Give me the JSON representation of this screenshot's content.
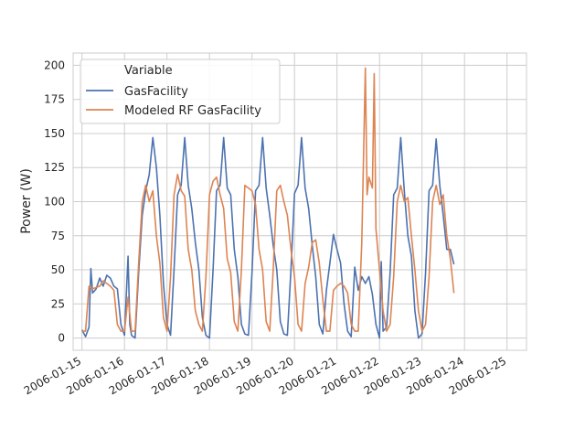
{
  "chart_data": {
    "type": "line",
    "title": "",
    "xlabel": "",
    "ylabel": "Power (W)",
    "x_type": "date",
    "xlim": [
      "2006-01-14T19:00",
      "2006-01-25T11:00"
    ],
    "ylim": [
      -9,
      209
    ],
    "yticks": [
      0,
      25,
      50,
      75,
      100,
      125,
      150,
      175,
      200
    ],
    "x_ticks": [
      "2006-01-15",
      "2006-01-16",
      "2006-01-17",
      "2006-01-18",
      "2006-01-19",
      "2006-01-20",
      "2006-01-21",
      "2006-01-22",
      "2006-01-23",
      "2006-01-24",
      "2006-01-25"
    ],
    "grid": true,
    "legend": {
      "title": "Variable",
      "position": "upper-left"
    },
    "series": [
      {
        "name": "GasFacility",
        "color": "#4c72b0",
        "points": [
          [
            "2006-01-15T00:00",
            6
          ],
          [
            "2006-01-15T02:00",
            1
          ],
          [
            "2006-01-15T04:00",
            8
          ],
          [
            "2006-01-15T05:00",
            51
          ],
          [
            "2006-01-15T06:00",
            33
          ],
          [
            "2006-01-15T08:00",
            36
          ],
          [
            "2006-01-15T10:00",
            44
          ],
          [
            "2006-01-15T12:00",
            38
          ],
          [
            "2006-01-15T14:00",
            46
          ],
          [
            "2006-01-15T16:00",
            44
          ],
          [
            "2006-01-15T18:00",
            38
          ],
          [
            "2006-01-15T20:00",
            36
          ],
          [
            "2006-01-15T22:00",
            10
          ],
          [
            "2006-01-16T00:00",
            2
          ],
          [
            "2006-01-16T02:00",
            60
          ],
          [
            "2006-01-16T03:00",
            10
          ],
          [
            "2006-01-16T04:00",
            2
          ],
          [
            "2006-01-16T06:00",
            0
          ],
          [
            "2006-01-16T08:00",
            48
          ],
          [
            "2006-01-16T10:00",
            90
          ],
          [
            "2006-01-16T12:00",
            108
          ],
          [
            "2006-01-16T14:00",
            120
          ],
          [
            "2006-01-16T16:00",
            147
          ],
          [
            "2006-01-16T18:00",
            125
          ],
          [
            "2006-01-16T20:00",
            90
          ],
          [
            "2006-01-16T22:00",
            40
          ],
          [
            "2006-01-17T00:00",
            10
          ],
          [
            "2006-01-17T02:00",
            2
          ],
          [
            "2006-01-17T04:00",
            50
          ],
          [
            "2006-01-17T06:00",
            105
          ],
          [
            "2006-01-17T08:00",
            112
          ],
          [
            "2006-01-17T10:00",
            147
          ],
          [
            "2006-01-17T12:00",
            112
          ],
          [
            "2006-01-17T14:00",
            95
          ],
          [
            "2006-01-17T16:00",
            70
          ],
          [
            "2006-01-17T18:00",
            50
          ],
          [
            "2006-01-17T20:00",
            15
          ],
          [
            "2006-01-17T22:00",
            2
          ],
          [
            "2006-01-18T00:00",
            0
          ],
          [
            "2006-01-18T02:00",
            50
          ],
          [
            "2006-01-18T04:00",
            108
          ],
          [
            "2006-01-18T06:00",
            112
          ],
          [
            "2006-01-18T08:00",
            147
          ],
          [
            "2006-01-18T10:00",
            110
          ],
          [
            "2006-01-18T12:00",
            105
          ],
          [
            "2006-01-18T14:00",
            65
          ],
          [
            "2006-01-18T16:00",
            45
          ],
          [
            "2006-01-18T18:00",
            10
          ],
          [
            "2006-01-18T20:00",
            3
          ],
          [
            "2006-01-18T22:00",
            2
          ],
          [
            "2006-01-19T00:00",
            48
          ],
          [
            "2006-01-19T02:00",
            108
          ],
          [
            "2006-01-19T04:00",
            112
          ],
          [
            "2006-01-19T06:00",
            147
          ],
          [
            "2006-01-19T08:00",
            110
          ],
          [
            "2006-01-19T10:00",
            90
          ],
          [
            "2006-01-19T12:00",
            68
          ],
          [
            "2006-01-19T14:00",
            50
          ],
          [
            "2006-01-19T16:00",
            12
          ],
          [
            "2006-01-19T18:00",
            3
          ],
          [
            "2006-01-19T20:00",
            2
          ],
          [
            "2006-01-19T22:00",
            50
          ],
          [
            "2006-01-20T00:00",
            106
          ],
          [
            "2006-01-20T02:00",
            112
          ],
          [
            "2006-01-20T04:00",
            147
          ],
          [
            "2006-01-20T06:00",
            110
          ],
          [
            "2006-01-20T08:00",
            95
          ],
          [
            "2006-01-20T10:00",
            68
          ],
          [
            "2006-01-20T12:00",
            45
          ],
          [
            "2006-01-20T14:00",
            10
          ],
          [
            "2006-01-20T16:00",
            3
          ],
          [
            "2006-01-20T18:00",
            35
          ],
          [
            "2006-01-20T20:00",
            55
          ],
          [
            "2006-01-20T22:00",
            76
          ],
          [
            "2006-01-21T00:00",
            65
          ],
          [
            "2006-01-21T02:00",
            55
          ],
          [
            "2006-01-21T04:00",
            25
          ],
          [
            "2006-01-21T06:00",
            5
          ],
          [
            "2006-01-21T08:00",
            1
          ],
          [
            "2006-01-21T10:00",
            52
          ],
          [
            "2006-01-21T12:00",
            35
          ],
          [
            "2006-01-21T14:00",
            45
          ],
          [
            "2006-01-21T16:00",
            40
          ],
          [
            "2006-01-21T18:00",
            45
          ],
          [
            "2006-01-21T20:00",
            32
          ],
          [
            "2006-01-21T22:00",
            10
          ],
          [
            "2006-01-22T00:00",
            0
          ],
          [
            "2006-01-22T01:00",
            56
          ],
          [
            "2006-01-22T02:00",
            5
          ],
          [
            "2006-01-22T04:00",
            8
          ],
          [
            "2006-01-22T06:00",
            48
          ],
          [
            "2006-01-22T08:00",
            105
          ],
          [
            "2006-01-22T10:00",
            110
          ],
          [
            "2006-01-22T12:00",
            147
          ],
          [
            "2006-01-22T14:00",
            108
          ],
          [
            "2006-01-22T16:00",
            75
          ],
          [
            "2006-01-22T18:00",
            60
          ],
          [
            "2006-01-22T20:00",
            20
          ],
          [
            "2006-01-22T22:00",
            0
          ],
          [
            "2006-01-23T00:00",
            3
          ],
          [
            "2006-01-23T02:00",
            48
          ],
          [
            "2006-01-23T04:00",
            108
          ],
          [
            "2006-01-23T06:00",
            112
          ],
          [
            "2006-01-23T08:00",
            146
          ],
          [
            "2006-01-23T10:00",
            112
          ],
          [
            "2006-01-23T12:00",
            90
          ],
          [
            "2006-01-23T14:00",
            65
          ],
          [
            "2006-01-23T16:00",
            65
          ],
          [
            "2006-01-23T18:00",
            54
          ]
        ]
      },
      {
        "name": "Modeled RF GasFacility",
        "color": "#dd8452",
        "points": [
          [
            "2006-01-15T00:00",
            5
          ],
          [
            "2006-01-15T02:00",
            5
          ],
          [
            "2006-01-15T04:00",
            38
          ],
          [
            "2006-01-15T06:00",
            36
          ],
          [
            "2006-01-15T08:00",
            37
          ],
          [
            "2006-01-15T10:00",
            38
          ],
          [
            "2006-01-15T12:00",
            42
          ],
          [
            "2006-01-15T14:00",
            40
          ],
          [
            "2006-01-15T16:00",
            38
          ],
          [
            "2006-01-15T18:00",
            35
          ],
          [
            "2006-01-15T20:00",
            10
          ],
          [
            "2006-01-15T22:00",
            5
          ],
          [
            "2006-01-16T00:00",
            5
          ],
          [
            "2006-01-16T02:00",
            30
          ],
          [
            "2006-01-16T04:00",
            5
          ],
          [
            "2006-01-16T06:00",
            5
          ],
          [
            "2006-01-16T08:00",
            55
          ],
          [
            "2006-01-16T10:00",
            100
          ],
          [
            "2006-01-16T12:00",
            112
          ],
          [
            "2006-01-16T14:00",
            100
          ],
          [
            "2006-01-16T16:00",
            108
          ],
          [
            "2006-01-16T18:00",
            75
          ],
          [
            "2006-01-16T20:00",
            55
          ],
          [
            "2006-01-16T22:00",
            15
          ],
          [
            "2006-01-17T00:00",
            5
          ],
          [
            "2006-01-17T02:00",
            45
          ],
          [
            "2006-01-17T04:00",
            105
          ],
          [
            "2006-01-17T06:00",
            120
          ],
          [
            "2006-01-17T08:00",
            108
          ],
          [
            "2006-01-17T10:00",
            104
          ],
          [
            "2006-01-17T12:00",
            65
          ],
          [
            "2006-01-17T14:00",
            50
          ],
          [
            "2006-01-17T16:00",
            20
          ],
          [
            "2006-01-17T18:00",
            10
          ],
          [
            "2006-01-17T20:00",
            5
          ],
          [
            "2006-01-17T22:00",
            45
          ],
          [
            "2006-01-18T00:00",
            105
          ],
          [
            "2006-01-18T02:00",
            115
          ],
          [
            "2006-01-18T04:00",
            118
          ],
          [
            "2006-01-18T06:00",
            105
          ],
          [
            "2006-01-18T08:00",
            95
          ],
          [
            "2006-01-18T10:00",
            58
          ],
          [
            "2006-01-18T12:00",
            48
          ],
          [
            "2006-01-18T14:00",
            12
          ],
          [
            "2006-01-18T16:00",
            5
          ],
          [
            "2006-01-18T18:00",
            50
          ],
          [
            "2006-01-18T20:00",
            112
          ],
          [
            "2006-01-18T22:00",
            110
          ],
          [
            "2006-01-19T00:00",
            108
          ],
          [
            "2006-01-19T02:00",
            98
          ],
          [
            "2006-01-19T04:00",
            65
          ],
          [
            "2006-01-19T06:00",
            50
          ],
          [
            "2006-01-19T08:00",
            12
          ],
          [
            "2006-01-19T10:00",
            5
          ],
          [
            "2006-01-19T12:00",
            50
          ],
          [
            "2006-01-19T14:00",
            108
          ],
          [
            "2006-01-19T16:00",
            112
          ],
          [
            "2006-01-19T18:00",
            100
          ],
          [
            "2006-01-19T20:00",
            90
          ],
          [
            "2006-01-19T22:00",
            65
          ],
          [
            "2006-01-20T00:00",
            45
          ],
          [
            "2006-01-20T02:00",
            10
          ],
          [
            "2006-01-20T04:00",
            5
          ],
          [
            "2006-01-20T06:00",
            40
          ],
          [
            "2006-01-20T08:00",
            52
          ],
          [
            "2006-01-20T10:00",
            70
          ],
          [
            "2006-01-20T12:00",
            72
          ],
          [
            "2006-01-20T14:00",
            55
          ],
          [
            "2006-01-20T16:00",
            28
          ],
          [
            "2006-01-20T18:00",
            5
          ],
          [
            "2006-01-20T20:00",
            5
          ],
          [
            "2006-01-20T22:00",
            35
          ],
          [
            "2006-01-21T00:00",
            38
          ],
          [
            "2006-01-21T02:00",
            40
          ],
          [
            "2006-01-21T04:00",
            38
          ],
          [
            "2006-01-21T06:00",
            33
          ],
          [
            "2006-01-21T08:00",
            10
          ],
          [
            "2006-01-21T10:00",
            5
          ],
          [
            "2006-01-21T12:00",
            5
          ],
          [
            "2006-01-21T14:00",
            70
          ],
          [
            "2006-01-21T16:00",
            198
          ],
          [
            "2006-01-21T17:00",
            105
          ],
          [
            "2006-01-21T18:00",
            118
          ],
          [
            "2006-01-21T20:00",
            110
          ],
          [
            "2006-01-21T21:00",
            194
          ],
          [
            "2006-01-21T22:00",
            80
          ],
          [
            "2006-01-22T00:00",
            50
          ],
          [
            "2006-01-22T02:00",
            20
          ],
          [
            "2006-01-22T04:00",
            5
          ],
          [
            "2006-01-22T06:00",
            10
          ],
          [
            "2006-01-22T08:00",
            45
          ],
          [
            "2006-01-22T10:00",
            100
          ],
          [
            "2006-01-22T12:00",
            112
          ],
          [
            "2006-01-22T14:00",
            100
          ],
          [
            "2006-01-22T16:00",
            103
          ],
          [
            "2006-01-22T18:00",
            75
          ],
          [
            "2006-01-22T20:00",
            50
          ],
          [
            "2006-01-22T22:00",
            20
          ],
          [
            "2006-01-23T00:00",
            5
          ],
          [
            "2006-01-23T02:00",
            10
          ],
          [
            "2006-01-23T04:00",
            45
          ],
          [
            "2006-01-23T06:00",
            100
          ],
          [
            "2006-01-23T08:00",
            112
          ],
          [
            "2006-01-23T10:00",
            98
          ],
          [
            "2006-01-23T12:00",
            105
          ],
          [
            "2006-01-23T14:00",
            75
          ],
          [
            "2006-01-23T16:00",
            58
          ],
          [
            "2006-01-23T18:00",
            33
          ]
        ]
      }
    ]
  }
}
